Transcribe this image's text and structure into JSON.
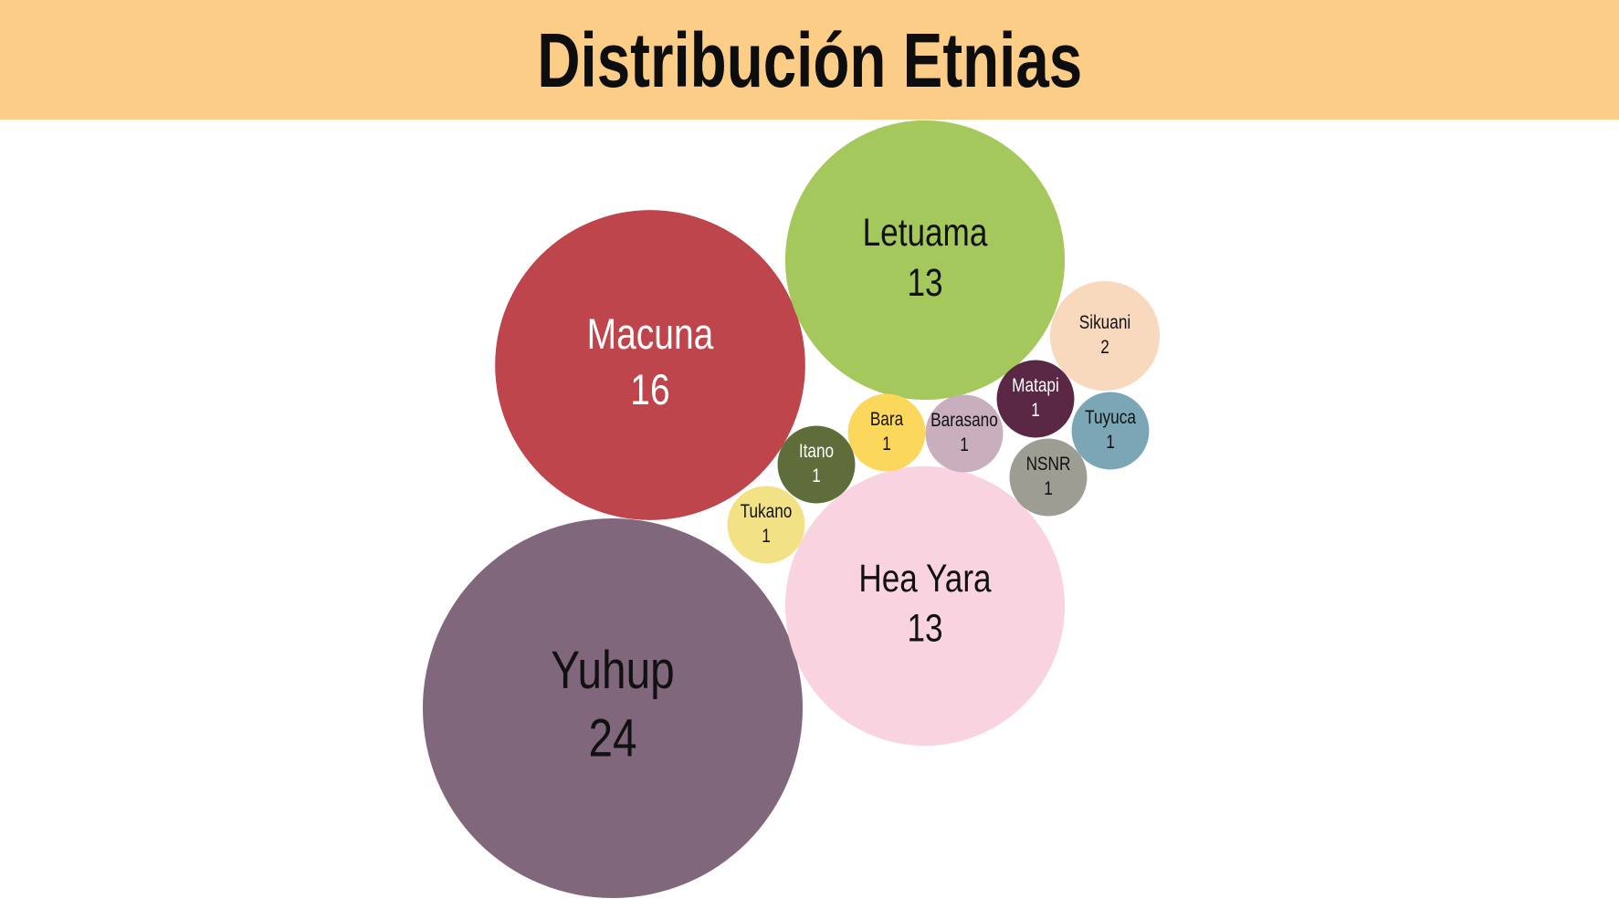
{
  "header": {
    "title": "Distribución Etnias"
  },
  "colors": {
    "header_bg": "#fbcd87",
    "title_text": "#0d0d0d"
  },
  "chart_data": {
    "type": "bubble",
    "title": "Distribución Etnias",
    "unit": "",
    "bubbles": [
      {
        "name": "Yuhup",
        "value": 24,
        "color": "#80677b",
        "text_color": "#111111"
      },
      {
        "name": "Macuna",
        "value": 16,
        "color": "#be454b",
        "text_color": "#ffffff"
      },
      {
        "name": "Letuama",
        "value": 13,
        "color": "#a5c85c",
        "text_color": "#111111"
      },
      {
        "name": "Hea Yara",
        "value": 13,
        "color": "#f9d3df",
        "text_color": "#111111"
      },
      {
        "name": "Sikuani",
        "value": 2,
        "color": "#f8d9bd",
        "text_color": "#111111"
      },
      {
        "name": "Matapi",
        "value": 1,
        "color": "#5a2744",
        "text_color": "#ffffff"
      },
      {
        "name": "Tuyuca",
        "value": 1,
        "color": "#7aa6b6",
        "text_color": "#111111"
      },
      {
        "name": "Barasano",
        "value": 1,
        "color": "#c9afbd",
        "text_color": "#111111"
      },
      {
        "name": "Bara",
        "value": 1,
        "color": "#fbd85c",
        "text_color": "#111111"
      },
      {
        "name": "Itano",
        "value": 1,
        "color": "#5e6d3a",
        "text_color": "#ffffff"
      },
      {
        "name": "NSNR",
        "value": 1,
        "color": "#9d9d94",
        "text_color": "#111111"
      },
      {
        "name": "Tukano",
        "value": 1,
        "color": "#f3e185",
        "text_color": "#111111"
      }
    ]
  }
}
